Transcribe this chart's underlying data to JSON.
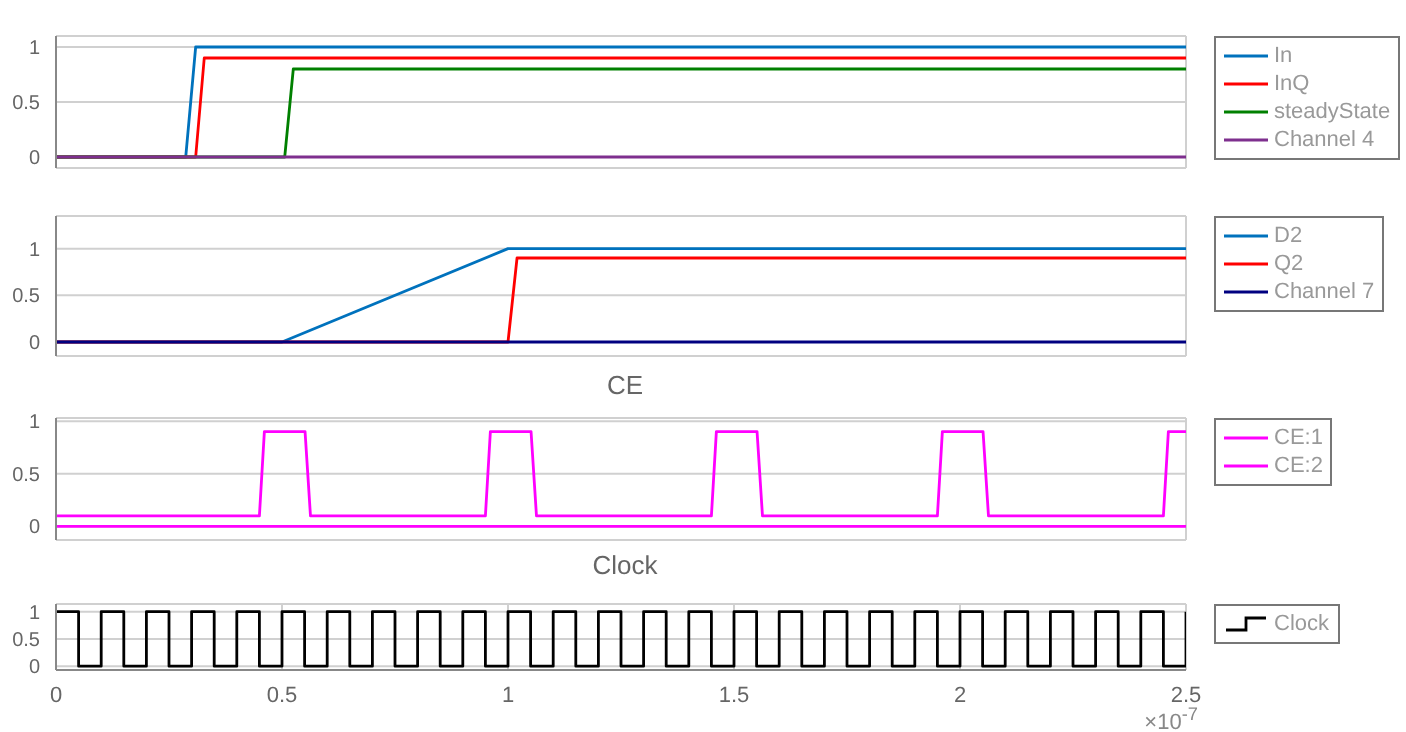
{
  "chart_data": [
    {
      "type": "line",
      "xlim": [
        0,
        2.5
      ],
      "xticks": [
        0,
        0.5,
        1,
        1.5,
        2,
        2.5
      ],
      "ylim": [
        -0.1,
        1.1
      ],
      "yticks": [
        0,
        0.5,
        1
      ],
      "grid": true,
      "legend": "right",
      "tick_labels": "y",
      "series": [
        {
          "name": "In",
          "color": "#0072bd",
          "x": [
            0,
            0.287,
            0.309,
            2.5
          ],
          "values": [
            0,
            0,
            1,
            1
          ]
        },
        {
          "name": "InQ",
          "color": "#ff0000",
          "x": [
            0,
            0.309,
            0.328,
            2.5
          ],
          "values": [
            0,
            0,
            0.9,
            0.9
          ]
        },
        {
          "name": "steadyState",
          "color": "#008000",
          "x": [
            0,
            0.506,
            0.525,
            2.5
          ],
          "values": [
            0,
            0,
            0.8,
            0.8
          ]
        },
        {
          "name": "Channel 4",
          "color": "#7e2f8e",
          "x": [
            0,
            2.5
          ],
          "values": [
            0,
            0
          ]
        }
      ]
    },
    {
      "type": "line",
      "xlim": [
        0,
        2.5
      ],
      "xticks": [
        0,
        0.5,
        1,
        1.5,
        2,
        2.5
      ],
      "ylim": [
        -0.15,
        1.35
      ],
      "yticks": [
        0,
        0.5,
        1
      ],
      "grid": true,
      "legend": "right",
      "tick_labels": "y",
      "series": [
        {
          "name": "D2",
          "color": "#0072bd",
          "x": [
            0,
            0.5,
            1.0,
            2.5
          ],
          "values": [
            0,
            0,
            1,
            1
          ]
        },
        {
          "name": "Q2",
          "color": "#ff0000",
          "x": [
            0,
            1.0,
            1.02,
            2.5
          ],
          "values": [
            0,
            0,
            0.9,
            0.9
          ]
        },
        {
          "name": "Channel 7",
          "color": "#000080",
          "x": [
            0,
            2.5
          ],
          "values": [
            0,
            0
          ]
        }
      ]
    },
    {
      "type": "line",
      "title": "CE",
      "xlim": [
        0,
        2.5
      ],
      "xticks": [
        0,
        0.5,
        1,
        1.5,
        2,
        2.5
      ],
      "ylim": [
        -0.13,
        1.03
      ],
      "yticks": [
        0,
        0.5,
        1
      ],
      "grid": true,
      "legend": "right",
      "tick_labels": "y",
      "series": [
        {
          "name": "CE:1",
          "color": "#ff00ff",
          "x": [
            0,
            2.5
          ],
          "values": [
            0,
            0
          ]
        },
        {
          "name": "CE:2",
          "color": "#ff00ff",
          "x": [
            0,
            0.45,
            0.461,
            0.551,
            0.563,
            0.95,
            0.961,
            1.051,
            1.063,
            1.45,
            1.461,
            1.551,
            1.563,
            1.95,
            1.961,
            2.051,
            2.063,
            2.45,
            2.461,
            2.5
          ],
          "values": [
            0.1,
            0.1,
            0.9,
            0.9,
            0.1,
            0.1,
            0.9,
            0.9,
            0.1,
            0.1,
            0.9,
            0.9,
            0.1,
            0.1,
            0.9,
            0.9,
            0.1,
            0.1,
            0.9,
            0.9
          ]
        }
      ]
    },
    {
      "type": "step",
      "title": "Clock",
      "xlim": [
        0,
        2.5
      ],
      "xticks": [
        0,
        0.5,
        1,
        1.5,
        2,
        2.5
      ],
      "ylim": [
        -0.07,
        1.14
      ],
      "yticks": [
        0,
        0.5,
        1
      ],
      "grid": true,
      "legend": "right",
      "annotations": [
        "×10$^{-7}$"
      ],
      "series": [
        {
          "name": "Clock",
          "color": "#000000",
          "x": [
            0,
            0.05,
            0.1,
            0.15,
            0.2,
            0.25,
            0.3,
            0.35,
            0.4,
            0.45,
            0.5,
            0.55,
            0.6,
            0.65,
            0.7,
            0.75,
            0.8,
            0.85,
            0.9,
            0.95,
            1,
            1.05,
            1.1,
            1.15,
            1.2,
            1.25,
            1.3,
            1.35,
            1.4,
            1.45,
            1.5,
            1.55,
            1.6,
            1.65,
            1.7,
            1.75,
            1.8,
            1.85,
            1.9,
            1.95,
            2,
            2.05,
            2.1,
            2.15,
            2.2,
            2.25,
            2.3,
            2.35,
            2.4,
            2.45,
            2.5
          ],
          "values": [
            1,
            0,
            1,
            0,
            1,
            0,
            1,
            0,
            1,
            0,
            1,
            0,
            1,
            0,
            1,
            0,
            1,
            0,
            1,
            0,
            1,
            0,
            1,
            0,
            1,
            0,
            1,
            0,
            1,
            0,
            1,
            0,
            1,
            0,
            1,
            0,
            1,
            0,
            1,
            0,
            1,
            0,
            1,
            0,
            1,
            0,
            1,
            0,
            1,
            0,
            1
          ]
        }
      ]
    }
  ]
}
